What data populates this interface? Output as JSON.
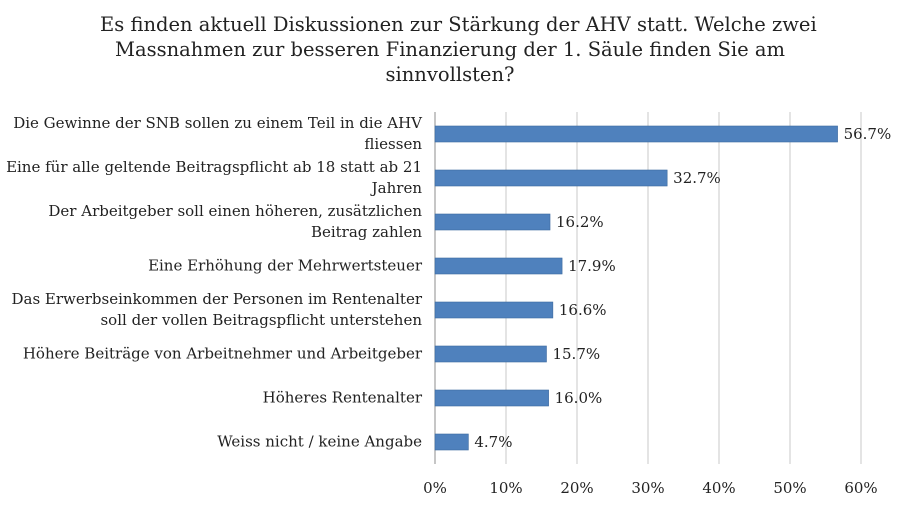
{
  "chart_data": {
    "type": "bar",
    "orientation": "horizontal",
    "title_lines": [
      "Es finden aktuell Diskussionen zur Stärkung der AHV statt. Welche zwei",
      "Massnahmen zur besseren Finanzierung der 1. Säule finden Sie am",
      "sinnvollsten?"
    ],
    "categories": [
      [
        "Die Gewinne der SNB sollen zu einem Teil in die AHV",
        "fliessen"
      ],
      [
        "Eine für alle geltende Beitragspflicht ab 18 statt ab 21",
        "Jahren"
      ],
      [
        "Der Arbeitgeber soll einen höheren, zusätzlichen",
        "Beitrag zahlen"
      ],
      [
        "Eine Erhöhung der Mehrwertsteuer"
      ],
      [
        "Das Erwerbseinkommen der Personen im Rentenalter",
        "soll der vollen Beitragspflicht unterstehen"
      ],
      [
        "Höhere Beiträge von Arbeitnehmer und Arbeitgeber"
      ],
      [
        "Höheres Rentenalter"
      ],
      [
        "Weiss nicht / keine Angabe"
      ]
    ],
    "values": [
      56.7,
      32.7,
      16.2,
      17.9,
      16.6,
      15.7,
      16.0,
      4.7
    ],
    "value_labels": [
      "56.7%",
      "32.7%",
      "16.2%",
      "17.9%",
      "16.6%",
      "15.7%",
      "16.0%",
      "4.7%"
    ],
    "xlim": [
      0,
      60
    ],
    "xticks": [
      0,
      10,
      20,
      30,
      40,
      50,
      60
    ],
    "xtick_labels": [
      "0%",
      "10%",
      "20%",
      "30%",
      "40%",
      "50%",
      "60%"
    ],
    "grid": "vertical",
    "bar_color": "#4f81bd",
    "grid_color": "#c8c8c8",
    "axis_color": "#8c8c8c"
  }
}
